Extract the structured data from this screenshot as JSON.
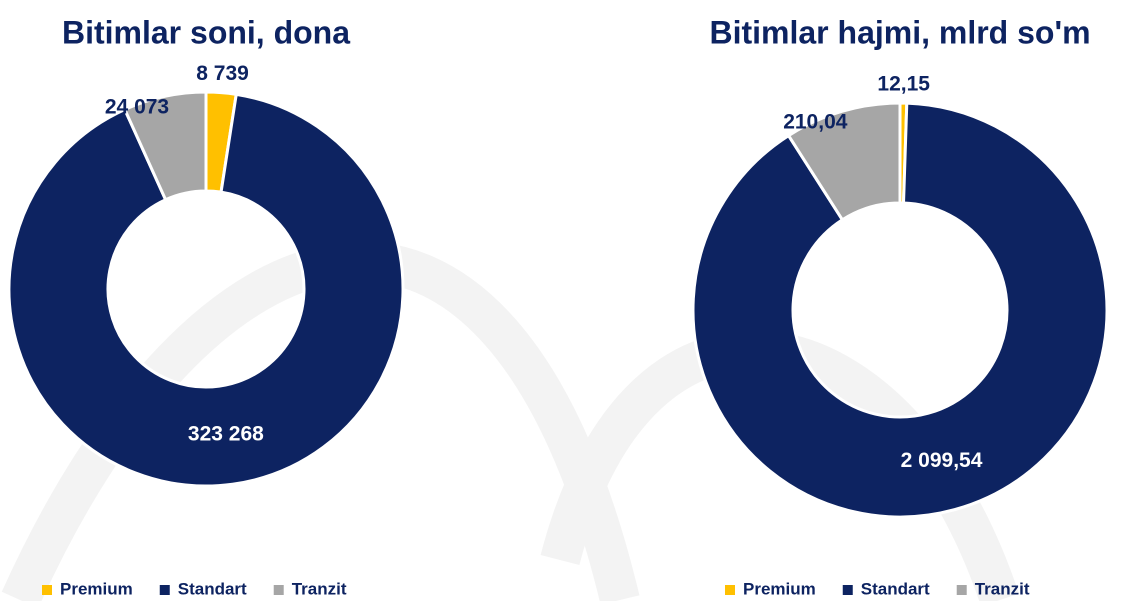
{
  "chart_data": [
    {
      "type": "donut",
      "title": "Bitimlar soni, dona",
      "categories": [
        "Premium",
        "Standart",
        "Tranzit"
      ],
      "values": [
        8739,
        323268,
        24073
      ],
      "value_labels": [
        "8 739",
        "323 268",
        "24 073"
      ],
      "colors": [
        "#ffc000",
        "#0d2361",
        "#a6a6a6"
      ],
      "legend": "bottom"
    },
    {
      "type": "donut",
      "title": "Bitimlar hajmi, mlrd so'm",
      "categories": [
        "Premium",
        "Standart",
        "Tranzit"
      ],
      "values": [
        12.15,
        2099.54,
        210.04
      ],
      "value_labels": [
        "12,15",
        "2 099,54",
        "210,04"
      ],
      "colors": [
        "#ffc000",
        "#0d2361",
        "#a6a6a6"
      ],
      "legend": "bottom"
    }
  ]
}
